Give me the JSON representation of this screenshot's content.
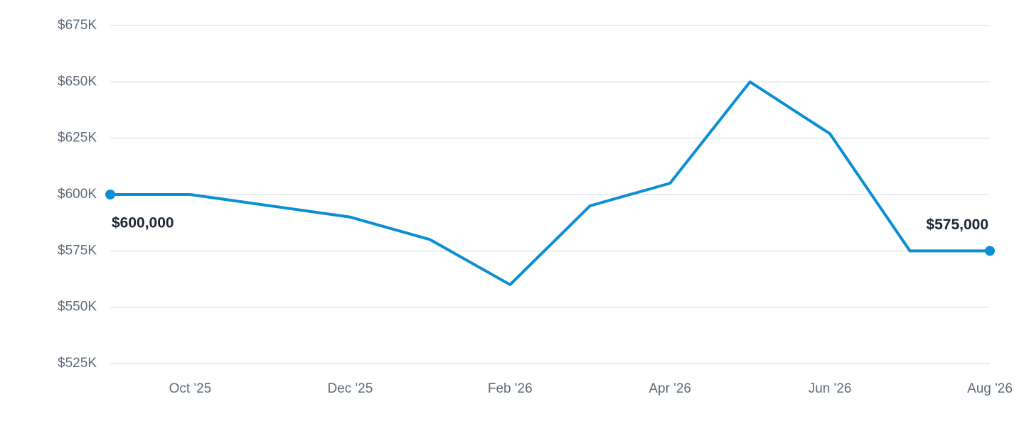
{
  "chart_data": {
    "type": "line",
    "categories": [
      null,
      "Oct '25",
      null,
      "Dec '25",
      null,
      "Feb '26",
      null,
      "Apr '26",
      null,
      "Jun '26",
      null,
      "Aug '26"
    ],
    "values": [
      600000,
      600000,
      595000,
      590000,
      580000,
      560000,
      595000,
      605000,
      650000,
      627000,
      575000,
      575000
    ],
    "value_labels": [
      "$600,000",
      null,
      null,
      null,
      null,
      null,
      null,
      null,
      null,
      null,
      null,
      "$575,000"
    ],
    "color": "#0b8fd3",
    "ylim": [
      525000,
      675000
    ],
    "yticks": [
      {
        "value": 525000,
        "label": "$525K"
      },
      {
        "value": 550000,
        "label": "$550K"
      },
      {
        "value": 575000,
        "label": "$575K"
      },
      {
        "value": 600000,
        "label": "$600K"
      },
      {
        "value": 625000,
        "label": "$625K"
      },
      {
        "value": 650000,
        "label": "$650K"
      },
      {
        "value": 675000,
        "label": "$675K"
      }
    ],
    "grid": true
  }
}
